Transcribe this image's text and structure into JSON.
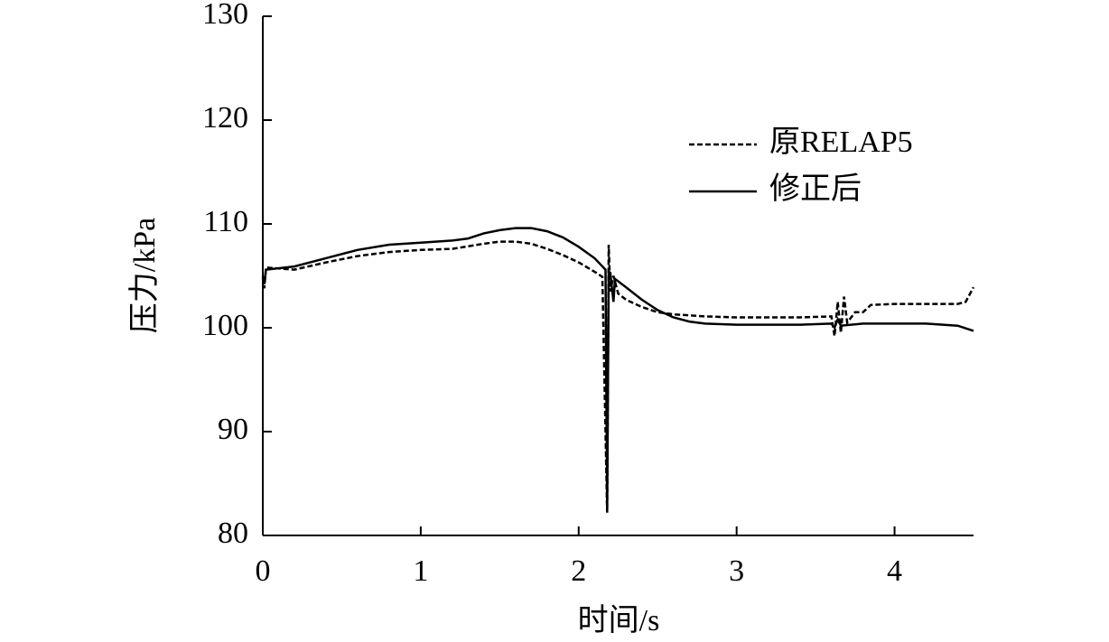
{
  "chart_data": {
    "type": "line",
    "x_label": "时间/s",
    "y_label": "压力/kPa",
    "xlim": [
      0,
      4.5
    ],
    "xticks": [
      0,
      1,
      2,
      3,
      4
    ],
    "ylim": [
      80,
      130
    ],
    "yticks": [
      80,
      90,
      100,
      110,
      120,
      130
    ],
    "legend": "upper right",
    "series": [
      {
        "name": "原RELAP5",
        "color": "#000000",
        "style": "dashed",
        "x": [
          0,
          0.01,
          0.02,
          0.2,
          0.4,
          0.6,
          0.8,
          1.0,
          1.2,
          1.4,
          1.5,
          1.6,
          1.7,
          1.8,
          1.9,
          2.0,
          2.1,
          2.15,
          2.18,
          2.19,
          2.2,
          2.22,
          2.25,
          2.3,
          2.4,
          2.5,
          2.6,
          2.8,
          3.0,
          3.2,
          3.4,
          3.6,
          3.62,
          3.64,
          3.66,
          3.68,
          3.7,
          3.75,
          3.8,
          3.85,
          4.0,
          4.2,
          4.4,
          4.45,
          4.5
        ],
        "values": [
          104.8,
          103.8,
          105.8,
          105.6,
          106.3,
          106.9,
          107.3,
          107.5,
          107.6,
          108.1,
          108.3,
          108.3,
          108.1,
          107.6,
          107.0,
          106.3,
          105.4,
          104.9,
          82.2,
          108.0,
          103.5,
          105.0,
          103.3,
          102.7,
          102.0,
          101.5,
          101.3,
          101.1,
          101.0,
          101.0,
          101.0,
          101.1,
          99.2,
          102.5,
          99.5,
          103.0,
          100.5,
          101.5,
          101.5,
          102.2,
          102.3,
          102.3,
          102.3,
          102.5,
          103.9
        ]
      },
      {
        "name": "修正后",
        "color": "#000000",
        "style": "solid",
        "x": [
          0,
          0.01,
          0.02,
          0.2,
          0.4,
          0.6,
          0.8,
          1.0,
          1.2,
          1.3,
          1.4,
          1.5,
          1.6,
          1.7,
          1.8,
          1.9,
          2.0,
          2.1,
          2.17,
          2.18,
          2.19,
          2.2,
          2.22,
          2.23,
          2.3,
          2.4,
          2.5,
          2.6,
          2.7,
          2.8,
          3.0,
          3.2,
          3.4,
          3.6,
          3.62,
          3.64,
          3.66,
          3.8,
          4.0,
          4.2,
          4.4,
          4.5
        ],
        "values": [
          105.0,
          104.2,
          105.6,
          105.9,
          106.7,
          107.5,
          108.0,
          108.2,
          108.4,
          108.6,
          109.1,
          109.4,
          109.6,
          109.6,
          109.3,
          108.7,
          107.8,
          106.7,
          105.6,
          82.3,
          105.4,
          105.3,
          102.5,
          104.7,
          103.9,
          102.7,
          101.7,
          101.0,
          100.6,
          100.4,
          100.3,
          100.3,
          100.3,
          100.4,
          100.0,
          100.8,
          100.2,
          100.4,
          100.4,
          100.4,
          100.2,
          99.7
        ]
      }
    ]
  }
}
